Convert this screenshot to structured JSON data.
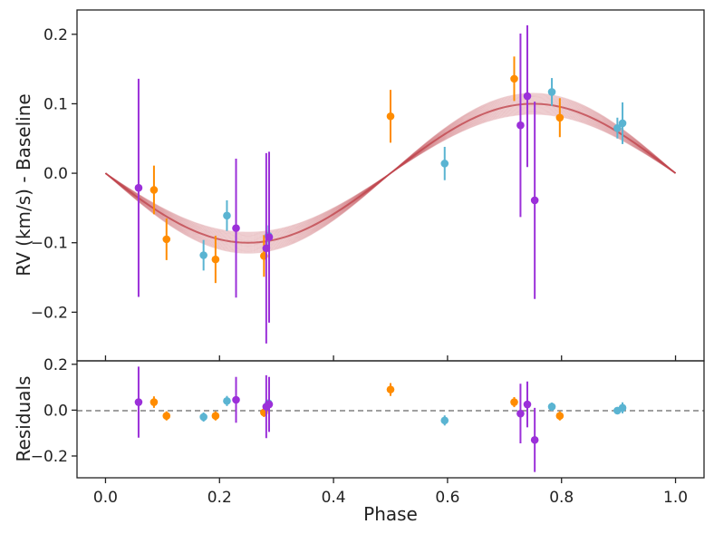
{
  "chart_data": [
    {
      "type": "scatter",
      "panel": "rv",
      "xlabel": "Phase",
      "ylabel": "RV (km/s) - Baseline",
      "xlim": [
        -0.05,
        1.05
      ],
      "ylim": [
        -0.27,
        0.235
      ],
      "x_ticks": [
        "0.0",
        "0.2",
        "0.4",
        "0.6",
        "0.8",
        "1.0"
      ],
      "y_ticks": [
        "−0.2",
        "−0.1",
        "0.0",
        "0.1",
        "0.2"
      ],
      "model": {
        "name": "Keplerian model",
        "color": "#c0464e",
        "amplitude": 0.1,
        "phase_peak": 0.75
      },
      "series": [
        {
          "name": "orange",
          "color": "#ff8c00",
          "points": [
            {
              "x": 0.085,
              "y": -0.024,
              "err": 0.035
            },
            {
              "x": 0.107,
              "y": -0.095,
              "err": 0.03
            },
            {
              "x": 0.193,
              "y": -0.124,
              "err": 0.034
            },
            {
              "x": 0.278,
              "y": -0.119,
              "err": 0.03
            },
            {
              "x": 0.5,
              "y": 0.082,
              "err": 0.038
            },
            {
              "x": 0.717,
              "y": 0.136,
              "err": 0.032
            },
            {
              "x": 0.797,
              "y": 0.08,
              "err": 0.028
            }
          ]
        },
        {
          "name": "blue",
          "color": "#5ab4d2",
          "points": [
            {
              "x": 0.172,
              "y": -0.118,
              "err": 0.022
            },
            {
              "x": 0.213,
              "y": -0.061,
              "err": 0.022
            },
            {
              "x": 0.286,
              "y": -0.09,
              "err": 0.015
            },
            {
              "x": 0.595,
              "y": 0.014,
              "err": 0.024
            },
            {
              "x": 0.783,
              "y": 0.117,
              "err": 0.02
            },
            {
              "x": 0.898,
              "y": 0.065,
              "err": 0.015
            },
            {
              "x": 0.907,
              "y": 0.072,
              "err": 0.03
            }
          ]
        },
        {
          "name": "purple",
          "color": "#9b30d9",
          "points": [
            {
              "x": 0.058,
              "y": -0.021,
              "err": 0.157
            },
            {
              "x": 0.229,
              "y": -0.079,
              "err": 0.1
            },
            {
              "x": 0.282,
              "y": -0.108,
              "err": 0.137
            },
            {
              "x": 0.287,
              "y": -0.092,
              "err": 0.123
            },
            {
              "x": 0.728,
              "y": 0.069,
              "err": 0.132
            },
            {
              "x": 0.74,
              "y": 0.111,
              "err": 0.102
            },
            {
              "x": 0.753,
              "y": -0.039,
              "err": 0.142
            }
          ]
        }
      ]
    },
    {
      "type": "scatter",
      "panel": "residuals",
      "xlabel": "Phase",
      "ylabel": "Residuals",
      "xlim": [
        -0.05,
        1.05
      ],
      "ylim": [
        -0.295,
        0.215
      ],
      "y_ticks": [
        "0.2",
        "0.0",
        "−0.2"
      ],
      "zero_line": true,
      "series": [
        {
          "name": "orange",
          "color": "#ff8c00",
          "points": [
            {
              "x": 0.085,
              "y": 0.035,
              "err": 0.025
            },
            {
              "x": 0.107,
              "y": -0.025,
              "err": 0.02
            },
            {
              "x": 0.193,
              "y": -0.025,
              "err": 0.02
            },
            {
              "x": 0.278,
              "y": -0.01,
              "err": 0.02
            },
            {
              "x": 0.5,
              "y": 0.09,
              "err": 0.028
            },
            {
              "x": 0.717,
              "y": 0.035,
              "err": 0.022
            },
            {
              "x": 0.797,
              "y": -0.025,
              "err": 0.02
            }
          ]
        },
        {
          "name": "blue",
          "color": "#5ab4d2",
          "points": [
            {
              "x": 0.172,
              "y": -0.03,
              "err": 0.02
            },
            {
              "x": 0.213,
              "y": 0.04,
              "err": 0.022
            },
            {
              "x": 0.286,
              "y": 0.03,
              "err": 0.016
            },
            {
              "x": 0.595,
              "y": -0.045,
              "err": 0.022
            },
            {
              "x": 0.783,
              "y": 0.015,
              "err": 0.018
            },
            {
              "x": 0.898,
              "y": -0.002,
              "err": 0.014
            },
            {
              "x": 0.907,
              "y": 0.01,
              "err": 0.024
            }
          ]
        },
        {
          "name": "purple",
          "color": "#9b30d9",
          "points": [
            {
              "x": 0.058,
              "y": 0.035,
              "err": 0.155
            },
            {
              "x": 0.229,
              "y": 0.045,
              "err": 0.1
            },
            {
              "x": 0.282,
              "y": 0.015,
              "err": 0.137
            },
            {
              "x": 0.287,
              "y": 0.025,
              "err": 0.12
            },
            {
              "x": 0.728,
              "y": -0.015,
              "err": 0.13
            },
            {
              "x": 0.74,
              "y": 0.025,
              "err": 0.1
            },
            {
              "x": 0.753,
              "y": -0.13,
              "err": 0.14
            }
          ]
        }
      ]
    }
  ]
}
